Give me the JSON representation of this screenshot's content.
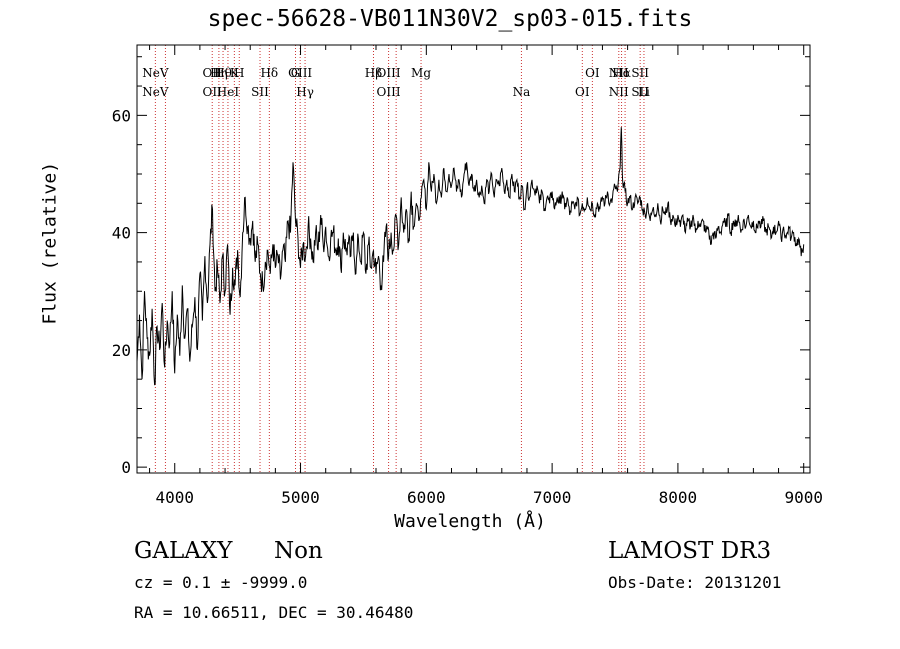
{
  "chart_data": {
    "type": "line",
    "title": "spec-56628-VB011N30V2_sp03-015.fits",
    "xlabel": "Wavelength (Å)",
    "ylabel": "Flux (relative)",
    "xlim": [
      3700,
      9050
    ],
    "ylim": [
      -1,
      72
    ],
    "xticks": [
      4000,
      5000,
      6000,
      7000,
      8000,
      9000
    ],
    "yticks": [
      0,
      20,
      40,
      60
    ],
    "grid": false,
    "line_color": "#000000",
    "marker_color": "#cc3333",
    "series": [
      {
        "points": [
          [
            3700,
            18
          ],
          [
            3720,
            26
          ],
          [
            3740,
            15
          ],
          [
            3760,
            30
          ],
          [
            3780,
            22
          ],
          [
            3800,
            19
          ],
          [
            3820,
            27
          ],
          [
            3840,
            14
          ],
          [
            3860,
            24
          ],
          [
            3880,
            20
          ],
          [
            3900,
            28
          ],
          [
            3920,
            17
          ],
          [
            3940,
            25
          ],
          [
            3960,
            21
          ],
          [
            3980,
            30
          ],
          [
            4000,
            16
          ],
          [
            4020,
            26
          ],
          [
            4040,
            19
          ],
          [
            4060,
            31
          ],
          [
            4080,
            22
          ],
          [
            4100,
            27
          ],
          [
            4120,
            18
          ],
          [
            4140,
            24
          ],
          [
            4160,
            29
          ],
          [
            4180,
            20
          ],
          [
            4200,
            33
          ],
          [
            4220,
            25
          ],
          [
            4240,
            36
          ],
          [
            4260,
            28
          ],
          [
            4280,
            38
          ],
          [
            4300,
            44
          ],
          [
            4320,
            30
          ],
          [
            4340,
            34
          ],
          [
            4360,
            28
          ],
          [
            4380,
            36
          ],
          [
            4400,
            30
          ],
          [
            4420,
            38
          ],
          [
            4440,
            26
          ],
          [
            4460,
            34
          ],
          [
            4480,
            31
          ],
          [
            4500,
            37
          ],
          [
            4520,
            29
          ],
          [
            4540,
            40
          ],
          [
            4560,
            46
          ],
          [
            4580,
            41
          ],
          [
            4600,
            39
          ],
          [
            4620,
            42
          ],
          [
            4640,
            35
          ],
          [
            4660,
            38
          ],
          [
            4680,
            33
          ],
          [
            4700,
            31
          ],
          [
            4720,
            35
          ],
          [
            4740,
            37
          ],
          [
            4760,
            33
          ],
          [
            4780,
            38
          ],
          [
            4800,
            34
          ],
          [
            4820,
            36
          ],
          [
            4840,
            32
          ],
          [
            4860,
            37
          ],
          [
            4880,
            35
          ],
          [
            4900,
            42
          ],
          [
            4920,
            40
          ],
          [
            4940,
            52
          ],
          [
            4960,
            42
          ],
          [
            4980,
            39
          ],
          [
            5000,
            34
          ],
          [
            5020,
            38
          ],
          [
            5040,
            36
          ],
          [
            5060,
            41
          ],
          [
            5080,
            39
          ],
          [
            5100,
            35
          ],
          [
            5120,
            40
          ],
          [
            5140,
            37
          ],
          [
            5160,
            43
          ],
          [
            5180,
            38
          ],
          [
            5200,
            41
          ],
          [
            5220,
            36
          ],
          [
            5240,
            39
          ],
          [
            5260,
            40
          ],
          [
            5280,
            37
          ],
          [
            5300,
            39
          ],
          [
            5320,
            34
          ],
          [
            5340,
            40
          ],
          [
            5360,
            37
          ],
          [
            5380,
            38
          ],
          [
            5400,
            36
          ],
          [
            5420,
            40
          ],
          [
            5440,
            33
          ],
          [
            5460,
            39
          ],
          [
            5480,
            35
          ],
          [
            5500,
            40
          ],
          [
            5520,
            33
          ],
          [
            5540,
            38
          ],
          [
            5560,
            34
          ],
          [
            5580,
            37
          ],
          [
            5600,
            33
          ],
          [
            5620,
            36
          ],
          [
            5640,
            31
          ],
          [
            5660,
            35
          ],
          [
            5680,
            41
          ],
          [
            5700,
            36
          ],
          [
            5720,
            40
          ],
          [
            5740,
            37
          ],
          [
            5760,
            43
          ],
          [
            5780,
            38
          ],
          [
            5800,
            46
          ],
          [
            5820,
            40
          ],
          [
            5840,
            44
          ],
          [
            5860,
            39
          ],
          [
            5880,
            47
          ],
          [
            5900,
            41
          ],
          [
            5920,
            45
          ],
          [
            5940,
            42
          ],
          [
            5960,
            46
          ],
          [
            5980,
            49
          ],
          [
            6000,
            44
          ],
          [
            6020,
            52
          ],
          [
            6040,
            47
          ],
          [
            6060,
            50
          ],
          [
            6080,
            45
          ],
          [
            6100,
            49
          ],
          [
            6120,
            46
          ],
          [
            6140,
            51
          ],
          [
            6160,
            47
          ],
          [
            6180,
            50
          ],
          [
            6200,
            48
          ],
          [
            6220,
            51
          ],
          [
            6240,
            47
          ],
          [
            6260,
            49
          ],
          [
            6280,
            46
          ],
          [
            6300,
            50
          ],
          [
            6320,
            52
          ],
          [
            6340,
            48
          ],
          [
            6360,
            50
          ],
          [
            6380,
            47
          ],
          [
            6400,
            49
          ],
          [
            6420,
            46
          ],
          [
            6440,
            48
          ],
          [
            6460,
            45
          ],
          [
            6480,
            49
          ],
          [
            6500,
            47
          ],
          [
            6520,
            50
          ],
          [
            6540,
            46
          ],
          [
            6560,
            49
          ],
          [
            6580,
            48
          ],
          [
            6600,
            51
          ],
          [
            6620,
            47
          ],
          [
            6640,
            49
          ],
          [
            6660,
            46
          ],
          [
            6680,
            50
          ],
          [
            6700,
            47
          ],
          [
            6720,
            49
          ],
          [
            6740,
            46
          ],
          [
            6760,
            48
          ],
          [
            6780,
            44
          ],
          [
            6800,
            48
          ],
          [
            6820,
            46
          ],
          [
            6840,
            49
          ],
          [
            6860,
            47
          ],
          [
            6880,
            48
          ],
          [
            6900,
            45
          ],
          [
            6920,
            47
          ],
          [
            6940,
            44
          ],
          [
            6960,
            46
          ],
          [
            6980,
            45
          ],
          [
            7000,
            47
          ],
          [
            7020,
            44
          ],
          [
            7040,
            46
          ],
          [
            7060,
            45
          ],
          [
            7080,
            47
          ],
          [
            7100,
            44
          ],
          [
            7120,
            46
          ],
          [
            7140,
            43
          ],
          [
            7160,
            45
          ],
          [
            7180,
            44
          ],
          [
            7200,
            46
          ],
          [
            7220,
            43
          ],
          [
            7240,
            45
          ],
          [
            7260,
            44
          ],
          [
            7280,
            46
          ],
          [
            7300,
            44
          ],
          [
            7320,
            45
          ],
          [
            7340,
            43
          ],
          [
            7360,
            45
          ],
          [
            7380,
            44
          ],
          [
            7400,
            46
          ],
          [
            7420,
            45
          ],
          [
            7440,
            47
          ],
          [
            7460,
            45
          ],
          [
            7480,
            46
          ],
          [
            7500,
            48
          ],
          [
            7520,
            47
          ],
          [
            7540,
            51
          ],
          [
            7550,
            58
          ],
          [
            7560,
            49
          ],
          [
            7580,
            47
          ],
          [
            7600,
            45
          ],
          [
            7620,
            46
          ],
          [
            7640,
            44
          ],
          [
            7660,
            46
          ],
          [
            7680,
            45
          ],
          [
            7700,
            46
          ],
          [
            7720,
            44
          ],
          [
            7740,
            43
          ],
          [
            7760,
            45
          ],
          [
            7780,
            42
          ],
          [
            7800,
            44
          ],
          [
            7820,
            43
          ],
          [
            7840,
            45
          ],
          [
            7860,
            42
          ],
          [
            7880,
            44
          ],
          [
            7900,
            43
          ],
          [
            7920,
            45
          ],
          [
            7940,
            42
          ],
          [
            7960,
            43
          ],
          [
            7980,
            41
          ],
          [
            8000,
            43
          ],
          [
            8020,
            41
          ],
          [
            8040,
            43
          ],
          [
            8060,
            40
          ],
          [
            8080,
            42
          ],
          [
            8100,
            41
          ],
          [
            8120,
            43
          ],
          [
            8140,
            40
          ],
          [
            8160,
            42
          ],
          [
            8180,
            41
          ],
          [
            8200,
            42
          ],
          [
            8220,
            40
          ],
          [
            8240,
            41
          ],
          [
            8260,
            38
          ],
          [
            8280,
            40
          ],
          [
            8300,
            39
          ],
          [
            8320,
            41
          ],
          [
            8340,
            40
          ],
          [
            8360,
            42
          ],
          [
            8380,
            41
          ],
          [
            8400,
            43
          ],
          [
            8420,
            40
          ],
          [
            8440,
            42
          ],
          [
            8460,
            41
          ],
          [
            8480,
            43
          ],
          [
            8500,
            40
          ],
          [
            8520,
            42
          ],
          [
            8540,
            41
          ],
          [
            8560,
            43
          ],
          [
            8580,
            41
          ],
          [
            8600,
            42
          ],
          [
            8620,
            40
          ],
          [
            8640,
            42
          ],
          [
            8660,
            41
          ],
          [
            8680,
            42
          ],
          [
            8700,
            40
          ],
          [
            8720,
            41
          ],
          [
            8740,
            39
          ],
          [
            8760,
            41
          ],
          [
            8780,
            40
          ],
          [
            8800,
            42
          ],
          [
            8820,
            39
          ],
          [
            8840,
            41
          ],
          [
            8860,
            39
          ],
          [
            8880,
            41
          ],
          [
            8900,
            39
          ],
          [
            8920,
            40
          ],
          [
            8940,
            38
          ],
          [
            8960,
            39
          ],
          [
            8980,
            36
          ],
          [
            9000,
            38
          ]
        ]
      }
    ],
    "lines": [
      {
        "name": "NeV",
        "x": 3846,
        "top": "NeV",
        "bottom": "NeV"
      },
      {
        "name": "NeV",
        "x": 3926
      },
      {
        "name": "OII",
        "x": 4298,
        "top": "OII",
        "bottom": "OII"
      },
      {
        "name": "Hη",
        "x": 4351,
        "top": "Hη"
      },
      {
        "name": "Hθ",
        "x": 4384,
        "top": "Hθ"
      },
      {
        "name": "HeI",
        "x": 4423,
        "bottom": "HeI"
      },
      {
        "name": "K",
        "x": 4474,
        "top": "K"
      },
      {
        "name": "H",
        "x": 4513,
        "top": "H"
      },
      {
        "name": "SII",
        "x": 4678,
        "bottom": "SII"
      },
      {
        "name": "Hδ",
        "x": 4752,
        "top": "Hδ"
      },
      {
        "name": "G",
        "x": 4960,
        "top": "G"
      },
      {
        "name": "OIII",
        "x": 4997,
        "top": "OIII"
      },
      {
        "name": "Hγ",
        "x": 5036,
        "bottom": "Hγ"
      },
      {
        "name": "Hβ",
        "x": 5580,
        "top": "Hβ"
      },
      {
        "name": "OIII",
        "x": 5700,
        "top": "OIII",
        "bottom": "OIII"
      },
      {
        "name": "OIII",
        "x": 5760
      },
      {
        "name": "Mg",
        "x": 5958,
        "top": "Mg"
      },
      {
        "name": "Na",
        "x": 6756,
        "bottom": "Na"
      },
      {
        "name": "OI",
        "x": 7240,
        "bottom": "OI"
      },
      {
        "name": "OI",
        "x": 7320,
        "top": "OI"
      },
      {
        "name": "NII",
        "x": 7530,
        "top": "NII",
        "bottom": "NII"
      },
      {
        "name": "Hα",
        "x": 7552,
        "top": "Hα"
      },
      {
        "name": "NII",
        "x": 7580
      },
      {
        "name": "SII",
        "x": 7700,
        "top": "SII",
        "bottom": "SII"
      },
      {
        "name": "Li",
        "x": 7730,
        "bottom": "Li"
      }
    ]
  },
  "info": {
    "object_class": "GALAXY",
    "subclass": "Non",
    "survey": "LAMOST DR3",
    "cz_line": "cz = 0.1 ± -9999.0",
    "obs_date": "Obs-Date: 20131201",
    "radec": "RA =  10.66511, DEC =  30.46480"
  }
}
